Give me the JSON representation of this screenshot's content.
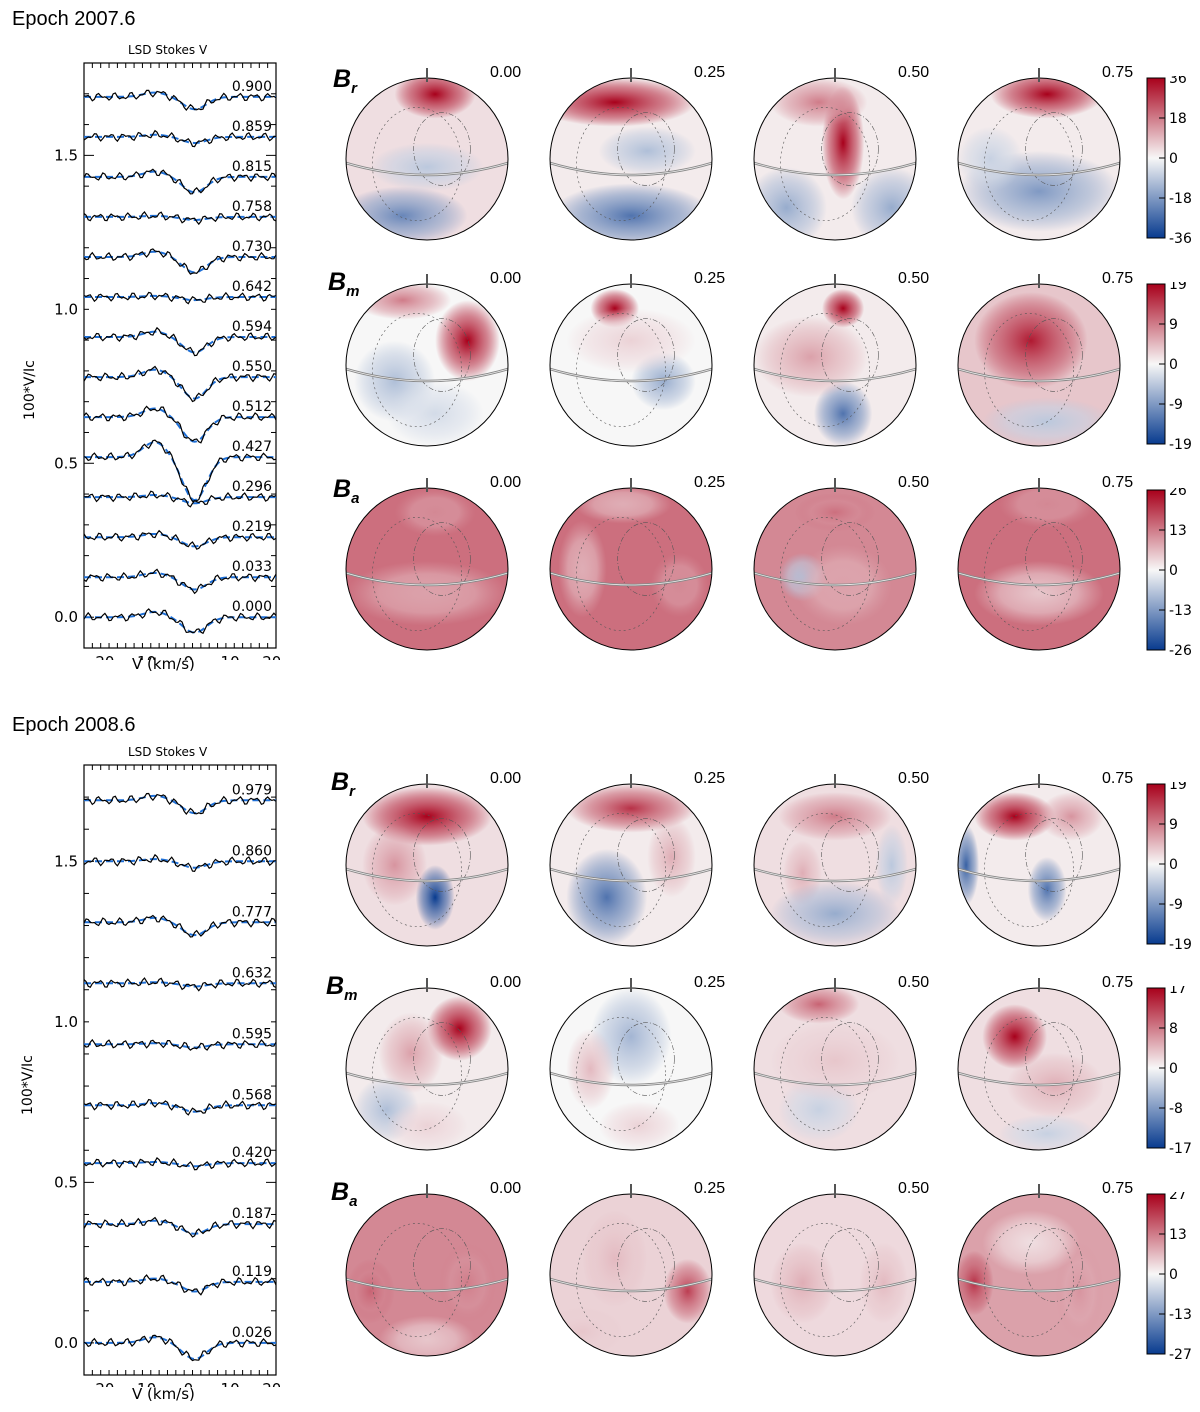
{
  "colors": {
    "red": "#a8001b",
    "white": "#f7f7f7",
    "blue": "#083b8f",
    "model_dash": "#1e6fd6",
    "observed": "#000000"
  },
  "epochs": [
    {
      "title": "Epoch 2007.6",
      "panel_title": "LSD Stokes V",
      "ylabel": "100*V/Ic",
      "xlabel": "V (km/s)",
      "yticks": [
        "1.5",
        "1.0",
        "0.5",
        "0.0"
      ],
      "xticks": [
        "20",
        "10",
        "0",
        "10",
        "20"
      ],
      "phases": [
        "0.900",
        "0.859",
        "0.815",
        "0.758",
        "0.730",
        "0.642",
        "0.594",
        "0.550",
        "0.512",
        "0.427",
        "0.296",
        "0.219",
        "0.033",
        "0.000"
      ],
      "chart_data": {
        "type": "line",
        "title": "LSD Stokes V",
        "xlabel": "V (km/s)",
        "ylabel": "100*V/Ic",
        "ylim": [
          -0.1,
          1.8
        ],
        "xlim": [
          -25,
          21
        ],
        "offsets": [
          1.69,
          1.56,
          1.43,
          1.3,
          1.17,
          1.04,
          0.91,
          0.78,
          0.65,
          0.52,
          0.39,
          0.26,
          0.13,
          0.0
        ],
        "dip_amplitudes": [
          0.04,
          0.02,
          0.05,
          0.01,
          0.05,
          0.01,
          0.05,
          0.07,
          0.08,
          0.14,
          0.02,
          0.03,
          0.04,
          0.05
        ]
      },
      "components": [
        {
          "label": "B",
          "sub": "r",
          "phases": [
            "0.00",
            "0.25",
            "0.50",
            "0.75"
          ],
          "cbar_ticks": [
            "36",
            "18",
            "0",
            "-18",
            "-36"
          ]
        },
        {
          "label": "B",
          "sub": "m",
          "phases": [
            "0.00",
            "0.25",
            "0.50",
            "0.75"
          ],
          "cbar_ticks": [
            "19",
            "9",
            "0",
            "-9",
            "-19"
          ]
        },
        {
          "label": "B",
          "sub": "a",
          "phases": [
            "0.00",
            "0.25",
            "0.50",
            "0.75"
          ],
          "cbar_ticks": [
            "26",
            "13",
            "0",
            "-13",
            "-26"
          ]
        }
      ]
    },
    {
      "title": "Epoch 2008.6",
      "panel_title": "LSD Stokes V",
      "ylabel": "100*V/Ic",
      "xlabel": "V (km/s)",
      "yticks": [
        "1.5",
        "1.0",
        "0.5",
        "0.0"
      ],
      "xticks": [
        "20",
        "10",
        "0",
        "10",
        "20"
      ],
      "phases": [
        "0.979",
        "0.860",
        "0.777",
        "0.632",
        "0.595",
        "0.568",
        "0.420",
        "0.187",
        "0.119",
        "0.026"
      ],
      "chart_data": {
        "type": "line",
        "title": "LSD Stokes V",
        "xlabel": "V (km/s)",
        "ylabel": "100*V/Ic",
        "ylim": [
          -0.1,
          1.8
        ],
        "xlim": [
          -25,
          21
        ],
        "offsets": [
          1.69,
          1.5,
          1.31,
          1.12,
          0.93,
          0.74,
          0.56,
          0.37,
          0.19,
          0.0
        ],
        "dip_amplitudes": [
          0.04,
          0.02,
          0.04,
          0.01,
          0.01,
          0.02,
          0.01,
          0.03,
          0.03,
          0.05
        ]
      },
      "components": [
        {
          "label": "B",
          "sub": "r",
          "phases": [
            "0.00",
            "0.25",
            "0.50",
            "0.75"
          ],
          "cbar_ticks": [
            "19",
            "9",
            "0",
            "-9",
            "-19"
          ]
        },
        {
          "label": "B",
          "sub": "m",
          "phases": [
            "0.00",
            "0.25",
            "0.50",
            "0.75"
          ],
          "cbar_ticks": [
            "17",
            "8",
            "0",
            "-8",
            "-17"
          ]
        },
        {
          "label": "B",
          "sub": "a",
          "phases": [
            "0.00",
            "0.25",
            "0.50",
            "0.75"
          ],
          "cbar_ticks": [
            "27",
            "13",
            "0",
            "-13",
            "-27"
          ]
        }
      ]
    }
  ],
  "maps": [
    [
      [
        {
          "base": 0.1,
          "spots": [
            [
              0.55,
              0.1,
              1.0,
              0.25,
              0.15
            ],
            [
              0.35,
              0.85,
              -0.6,
              0.4,
              0.18
            ],
            [
              0.5,
              0.55,
              -0.25,
              0.35,
              0.15
            ]
          ]
        },
        {
          "base": 0.05,
          "spots": [
            [
              0.4,
              0.15,
              1.0,
              0.5,
              0.15
            ],
            [
              0.5,
              0.85,
              -0.7,
              0.5,
              0.2
            ],
            [
              0.6,
              0.45,
              -0.3,
              0.3,
              0.15
            ]
          ]
        },
        {
          "base": 0.05,
          "spots": [
            [
              0.55,
              0.4,
              1.0,
              0.13,
              0.35
            ],
            [
              0.4,
              0.15,
              0.5,
              0.3,
              0.15
            ],
            [
              0.2,
              0.8,
              -0.4,
              0.25,
              0.25
            ],
            [
              0.85,
              0.8,
              -0.4,
              0.25,
              0.25
            ]
          ]
        },
        {
          "base": 0.05,
          "spots": [
            [
              0.55,
              0.1,
              1.0,
              0.35,
              0.15
            ],
            [
              0.5,
              0.7,
              -0.5,
              0.5,
              0.25
            ],
            [
              0.2,
              0.5,
              -0.2,
              0.2,
              0.2
            ]
          ]
        }
      ],
      [
        {
          "base": 0.0,
          "spots": [
            [
              0.75,
              0.35,
              1.0,
              0.2,
              0.25
            ],
            [
              0.35,
              0.1,
              0.5,
              0.3,
              0.12
            ],
            [
              0.3,
              0.6,
              -0.3,
              0.25,
              0.25
            ],
            [
              0.55,
              0.8,
              -0.15,
              0.3,
              0.2
            ]
          ]
        },
        {
          "base": 0.0,
          "spots": [
            [
              0.4,
              0.15,
              1.0,
              0.15,
              0.12
            ],
            [
              0.7,
              0.6,
              -0.4,
              0.2,
              0.18
            ],
            [
              0.5,
              0.35,
              0.15,
              0.4,
              0.2
            ]
          ]
        },
        {
          "base": 0.05,
          "spots": [
            [
              0.55,
              0.15,
              1.0,
              0.13,
              0.12
            ],
            [
              0.55,
              0.8,
              -0.7,
              0.18,
              0.2
            ],
            [
              0.35,
              0.45,
              0.35,
              0.35,
              0.25
            ]
          ]
        },
        {
          "base": 0.2,
          "spots": [
            [
              0.45,
              0.35,
              0.9,
              0.35,
              0.3
            ],
            [
              0.55,
              0.85,
              -0.25,
              0.4,
              0.15
            ]
          ]
        }
      ],
      [
        {
          "base": 0.55,
          "spots": [
            [
              0.55,
              0.15,
              0.45,
              0.25,
              0.15
            ],
            [
              0.5,
              0.65,
              0.35,
              0.5,
              0.2
            ]
          ]
        },
        {
          "base": 0.55,
          "spots": [
            [
              0.8,
              0.6,
              0.45,
              0.18,
              0.2
            ],
            [
              0.2,
              0.5,
              0.3,
              0.15,
              0.3
            ],
            [
              0.45,
              0.1,
              0.3,
              0.3,
              0.12
            ]
          ]
        },
        {
          "base": 0.45,
          "spots": [
            [
              0.5,
              0.15,
              0.55,
              0.25,
              0.12
            ],
            [
              0.3,
              0.55,
              -0.3,
              0.15,
              0.15
            ],
            [
              0.55,
              0.6,
              0.35,
              0.3,
              0.25
            ]
          ]
        },
        {
          "base": 0.55,
          "spots": [
            [
              0.55,
              0.1,
              0.45,
              0.3,
              0.15
            ],
            [
              0.5,
              0.65,
              0.2,
              0.4,
              0.2
            ]
          ]
        }
      ]
    ],
    [
      [
        {
          "base": 0.1,
          "spots": [
            [
              0.5,
              0.2,
              1.0,
              0.4,
              0.18
            ],
            [
              0.55,
              0.7,
              -1.0,
              0.12,
              0.2
            ],
            [
              0.3,
              0.5,
              0.4,
              0.2,
              0.25
            ]
          ]
        },
        {
          "base": 0.05,
          "spots": [
            [
              0.5,
              0.15,
              0.8,
              0.4,
              0.15
            ],
            [
              0.35,
              0.7,
              -0.7,
              0.25,
              0.3
            ],
            [
              0.75,
              0.45,
              0.3,
              0.15,
              0.25
            ]
          ]
        },
        {
          "base": 0.1,
          "spots": [
            [
              0.5,
              0.2,
              0.5,
              0.35,
              0.15
            ],
            [
              0.3,
              0.55,
              0.3,
              0.12,
              0.2
            ],
            [
              0.5,
              0.8,
              -0.4,
              0.4,
              0.2
            ],
            [
              0.85,
              0.5,
              -0.25,
              0.1,
              0.25
            ]
          ]
        },
        {
          "base": 0.05,
          "spots": [
            [
              0.35,
              0.2,
              1.0,
              0.25,
              0.15
            ],
            [
              0.55,
              0.65,
              -0.7,
              0.12,
              0.2
            ],
            [
              0.05,
              0.5,
              -0.8,
              0.08,
              0.25
            ],
            [
              0.7,
              0.2,
              0.4,
              0.2,
              0.15
            ]
          ]
        }
      ],
      [
        {
          "base": 0.05,
          "spots": [
            [
              0.7,
              0.25,
              1.0,
              0.2,
              0.2
            ],
            [
              0.4,
              0.4,
              0.35,
              0.2,
              0.25
            ],
            [
              0.25,
              0.75,
              -0.3,
              0.2,
              0.2
            ],
            [
              0.5,
              0.85,
              0.15,
              0.25,
              0.15
            ]
          ]
        },
        {
          "base": 0.0,
          "spots": [
            [
              0.5,
              0.3,
              -0.35,
              0.25,
              0.3
            ],
            [
              0.25,
              0.5,
              0.25,
              0.15,
              0.25
            ],
            [
              0.55,
              0.85,
              0.15,
              0.25,
              0.15
            ]
          ]
        },
        {
          "base": 0.1,
          "spots": [
            [
              0.4,
              0.1,
              0.6,
              0.25,
              0.12
            ],
            [
              0.4,
              0.75,
              -0.2,
              0.25,
              0.2
            ],
            [
              0.5,
              0.45,
              0.2,
              0.4,
              0.25
            ]
          ]
        },
        {
          "base": 0.1,
          "spots": [
            [
              0.35,
              0.3,
              1.0,
              0.2,
              0.2
            ],
            [
              0.6,
              0.6,
              0.3,
              0.3,
              0.2
            ],
            [
              0.55,
              0.9,
              -0.2,
              0.3,
              0.12
            ]
          ]
        }
      ],
      [
        {
          "base": 0.45,
          "spots": [
            [
              0.15,
              0.6,
              0.6,
              0.15,
              0.2
            ],
            [
              0.75,
              0.55,
              0.5,
              0.18,
              0.25
            ],
            [
              0.5,
              0.9,
              0.2,
              0.3,
              0.15
            ]
          ]
        },
        {
          "base": 0.15,
          "spots": [
            [
              0.85,
              0.6,
              0.75,
              0.15,
              0.2
            ],
            [
              0.4,
              0.4,
              0.25,
              0.2,
              0.3
            ],
            [
              0.2,
              0.85,
              0.2,
              0.25,
              0.15
            ]
          ]
        },
        {
          "base": 0.12,
          "spots": [
            [
              0.3,
              0.55,
              0.3,
              0.2,
              0.25
            ],
            [
              0.8,
              0.55,
              0.25,
              0.15,
              0.25
            ]
          ]
        },
        {
          "base": 0.35,
          "spots": [
            [
              0.1,
              0.55,
              0.8,
              0.12,
              0.2
            ],
            [
              0.75,
              0.6,
              0.4,
              0.15,
              0.3
            ],
            [
              0.45,
              0.3,
              0.1,
              0.3,
              0.2
            ]
          ]
        }
      ]
    ]
  ]
}
